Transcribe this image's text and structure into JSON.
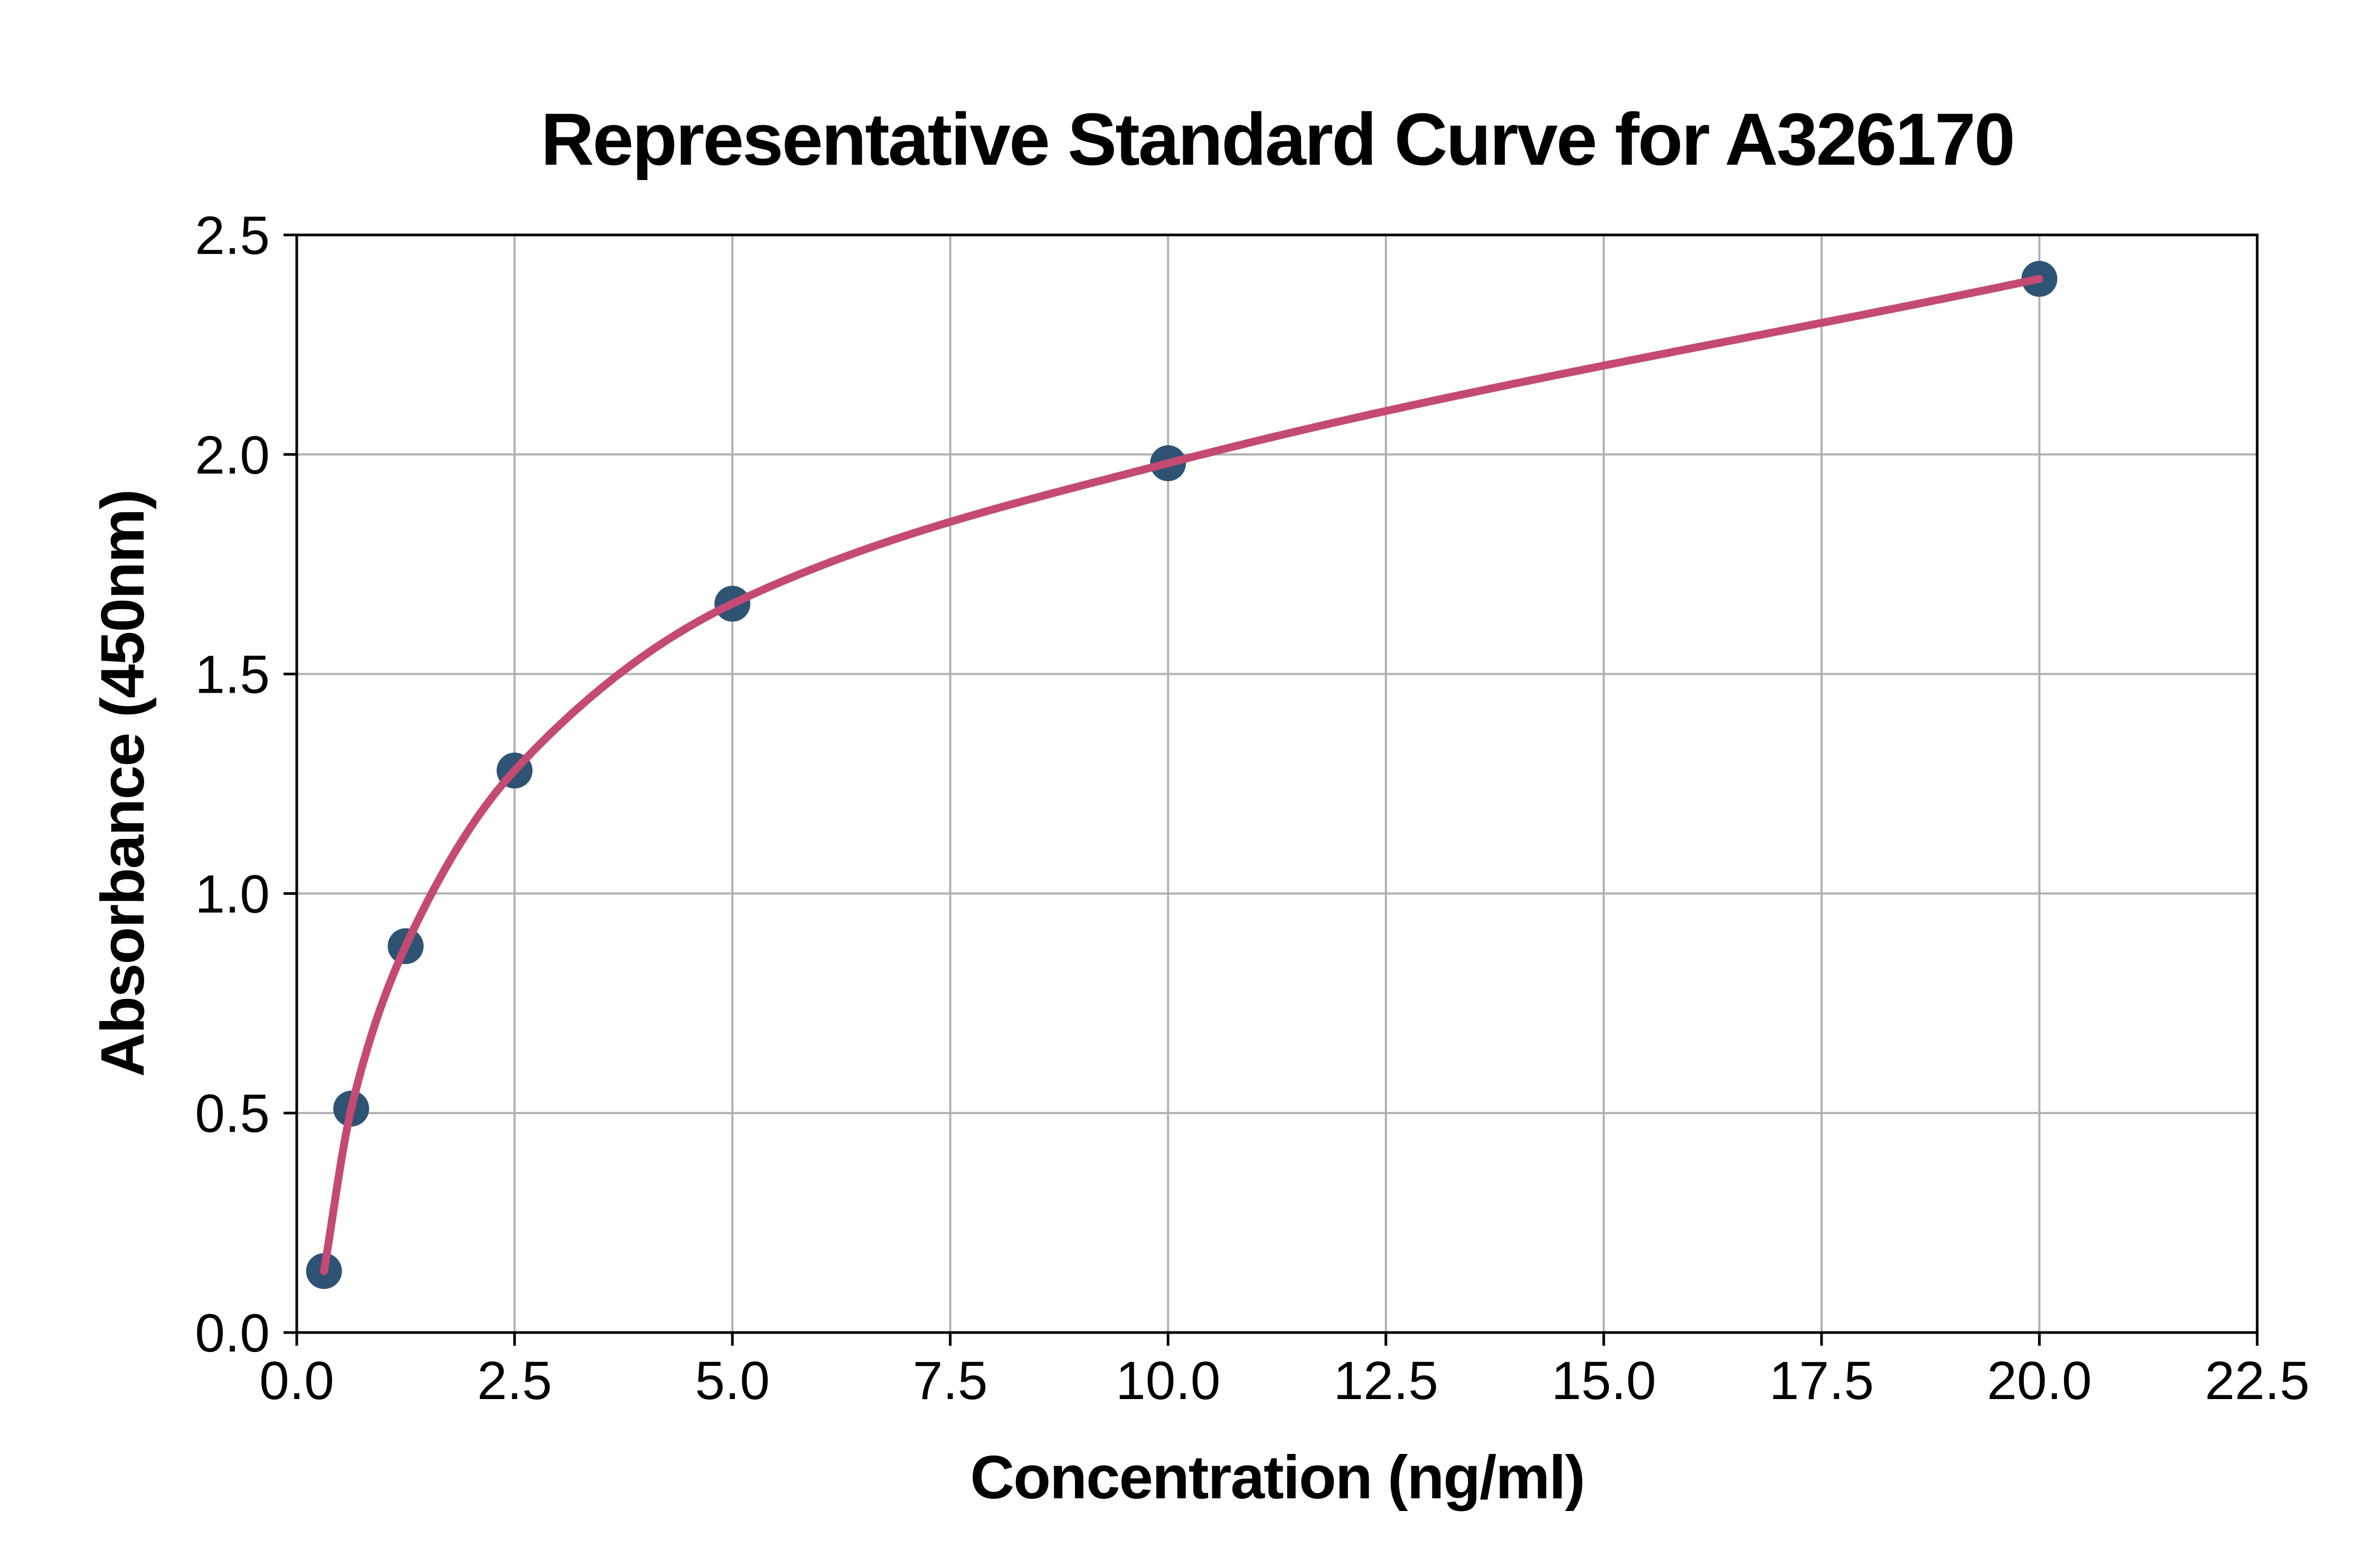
{
  "chart_data": {
    "type": "scatter",
    "title": "Representative Standard Curve for A326170",
    "xlabel": "Concentration (ng/ml)",
    "ylabel": "Absorbance (450nm)",
    "series": [
      {
        "name": "standard-points",
        "type": "scatter",
        "x": [
          0.313,
          0.625,
          1.25,
          2.5,
          5.0,
          10.0,
          20.0
        ],
        "y": [
          0.14,
          0.51,
          0.88,
          1.28,
          1.66,
          1.98,
          2.4
        ],
        "color": "#2f5373"
      },
      {
        "name": "fit-curve",
        "type": "line",
        "fit": "smooth-through-points",
        "x_start": 0.313,
        "x_end": 20.0,
        "color": "#c44a73"
      }
    ],
    "xlim": [
      0,
      22.5
    ],
    "ylim": [
      0,
      2.5
    ],
    "x_tick_labels": [
      "0.0",
      "2.5",
      "5.0",
      "7.5",
      "10.0",
      "12.5",
      "15.0",
      "17.5",
      "20.0",
      "22.5"
    ],
    "y_tick_labels": [
      "0.0",
      "0.5",
      "1.0",
      "1.5",
      "2.0",
      "2.5"
    ],
    "grid": true,
    "legend": "none"
  },
  "style": {
    "background": "#ffffff",
    "grid_color": "#b0b0b0",
    "spine_color": "#000000",
    "text_color": "#000000",
    "point_color": "#2f5373",
    "curve_color": "#c44a73"
  }
}
